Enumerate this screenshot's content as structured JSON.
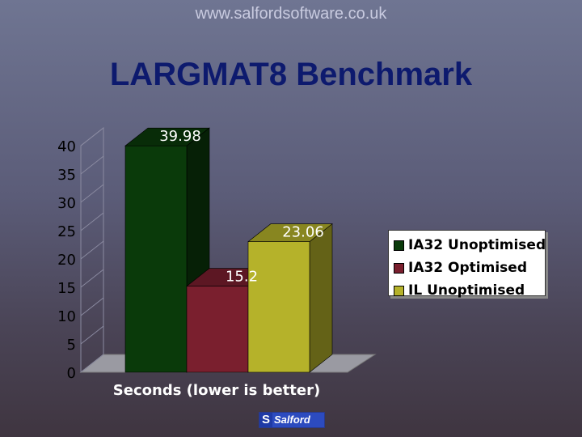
{
  "header": {
    "url": "www.salfordsoftware.co.uk",
    "title": "LARGMAT8 Benchmark"
  },
  "chart_data": {
    "type": "bar",
    "title": "LARGMAT8 Benchmark",
    "xlabel": "Seconds (lower is better)",
    "ylabel": "",
    "ylim": [
      0,
      40
    ],
    "yticks": [
      0,
      5,
      10,
      15,
      20,
      25,
      30,
      35,
      40
    ],
    "three_d": true,
    "grid": false,
    "legend_position": "right",
    "series": [
      {
        "name": "IA32 Unoptimised",
        "values": [
          39.98
        ],
        "color": "#0a3a0a",
        "label": "39.98"
      },
      {
        "name": "IA32 Optimised",
        "values": [
          15.2
        ],
        "color": "#7a1f2e",
        "label": "15.2"
      },
      {
        "name": "IL Unoptimised",
        "values": [
          23.06
        ],
        "color": "#b5b22a",
        "label": "23.06"
      }
    ]
  },
  "logo": {
    "mark": "S",
    "text": "Salford"
  }
}
